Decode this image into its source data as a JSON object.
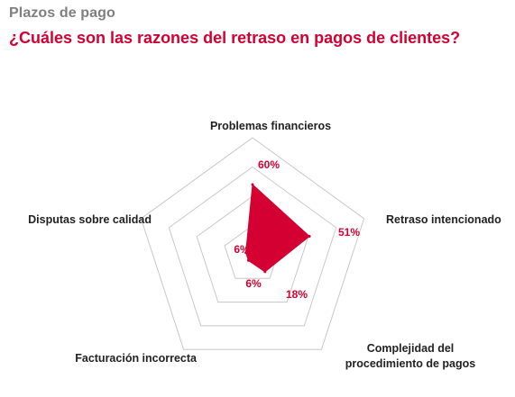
{
  "header": {
    "title": "Plazos de pago",
    "subtitle": "¿Cuáles son las razones del retraso en pagos de clientes?"
  },
  "chart_data": {
    "type": "radar",
    "categories": [
      "Problemas financieros",
      "Retraso intencionado",
      "Complejidad del procedimiento de pagos",
      "Facturación incorrecta",
      "Disputas sobre calidad"
    ],
    "category_lines": [
      [
        "Problemas financieros"
      ],
      [
        "Retraso intencionado"
      ],
      [
        "Complejidad del",
        "procedimiento de pagos"
      ],
      [
        "Facturación incorrecta"
      ],
      [
        "Disputas sobre calidad"
      ]
    ],
    "values": [
      60,
      51,
      18,
      6,
      6
    ],
    "value_labels": [
      "60%",
      "51%",
      "18%",
      "6%",
      "6%"
    ],
    "rmax": 100,
    "grid_rings": 4,
    "series_color": "#d50032",
    "grid_color": "#c8c8c8"
  }
}
